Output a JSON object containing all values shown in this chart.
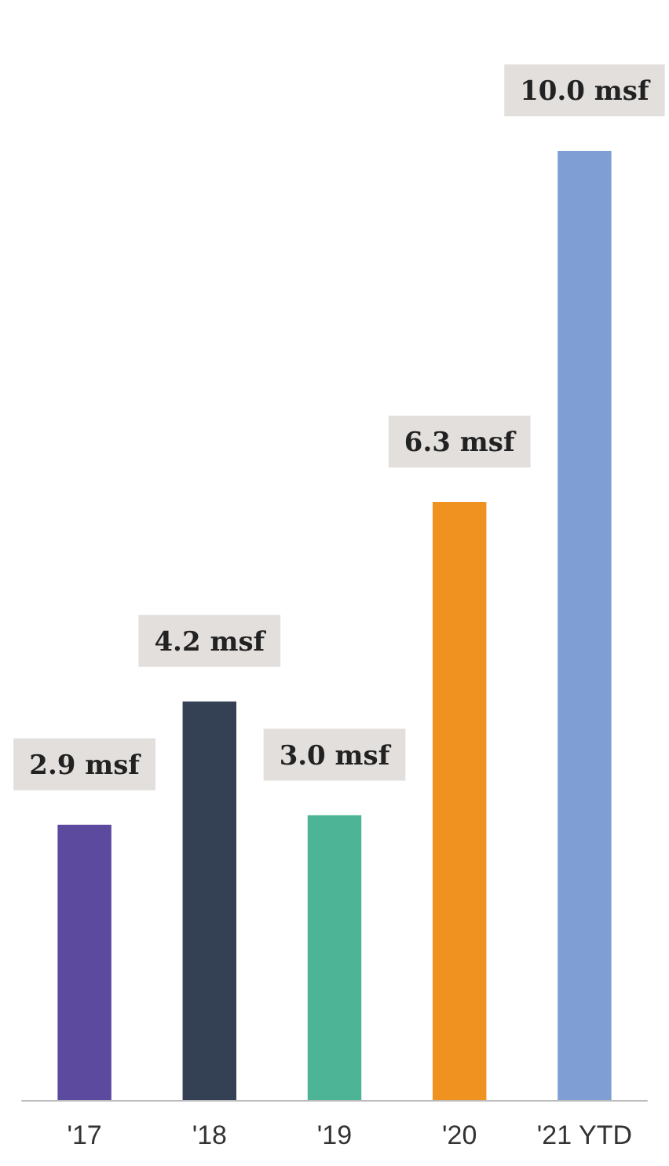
{
  "chart_data": {
    "type": "bar",
    "categories": [
      "'17",
      "'18",
      "'19",
      "'20",
      "'21 YTD"
    ],
    "values": [
      2.9,
      4.2,
      3.0,
      6.3,
      10.0
    ],
    "colors": [
      "#5b4a9e",
      "#344154",
      "#4db596",
      "#f0921f",
      "#7f9fd4"
    ],
    "value_labels": [
      "2.9 msf",
      "4.2 msf",
      "3.0 msf",
      "6.3 msf",
      "10.0 msf"
    ]
  }
}
